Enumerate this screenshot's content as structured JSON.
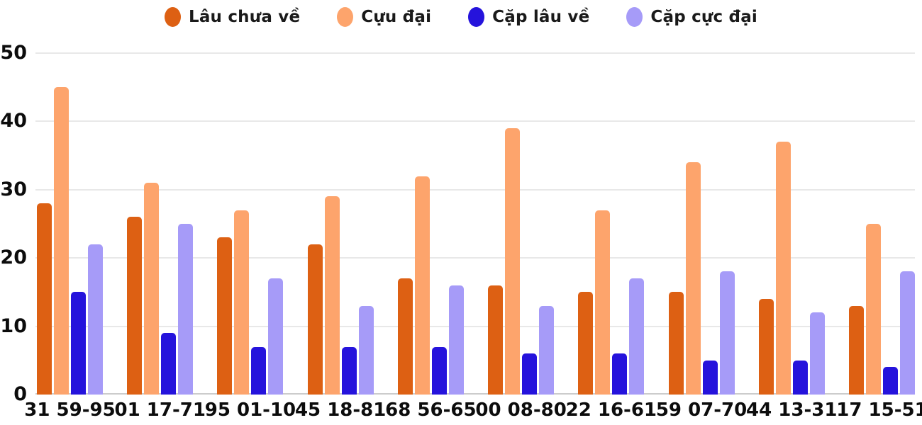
{
  "chart_data": {
    "type": "bar",
    "title": "",
    "xlabel": "",
    "ylabel": "",
    "ylim": [
      0,
      50
    ],
    "yticks": [
      0,
      10,
      20,
      30,
      40,
      50
    ],
    "grid": true,
    "legend_position": "top",
    "categories": [
      "31 59-95",
      "01 17-71",
      "95 01-10",
      "45 18-81",
      "68 56-65",
      "00 08-80",
      "22 16-61",
      "59 07-70",
      "44 13-31",
      "17 15-51"
    ],
    "series": [
      {
        "name": "Lâu chưa về",
        "color": "#dd6013",
        "values": [
          28,
          26,
          23,
          22,
          17,
          16,
          15,
          15,
          14,
          13
        ]
      },
      {
        "name": "Cựu đại",
        "color": "#fda46c",
        "values": [
          45,
          31,
          27,
          29,
          32,
          39,
          27,
          34,
          37,
          25
        ]
      },
      {
        "name": "Cặp lâu về",
        "color": "#2513dc",
        "values": [
          15,
          9,
          7,
          7,
          7,
          6,
          6,
          5,
          5,
          4
        ]
      },
      {
        "name": "Cặp cực đại",
        "color": "#a69bf8",
        "values": [
          22,
          25,
          17,
          13,
          16,
          13,
          17,
          18,
          12,
          18
        ]
      }
    ]
  },
  "axis_colors": {
    "gridline": "#e8e8e8",
    "baseline": "#cccccc",
    "tick_text": "#0c0c0c"
  }
}
